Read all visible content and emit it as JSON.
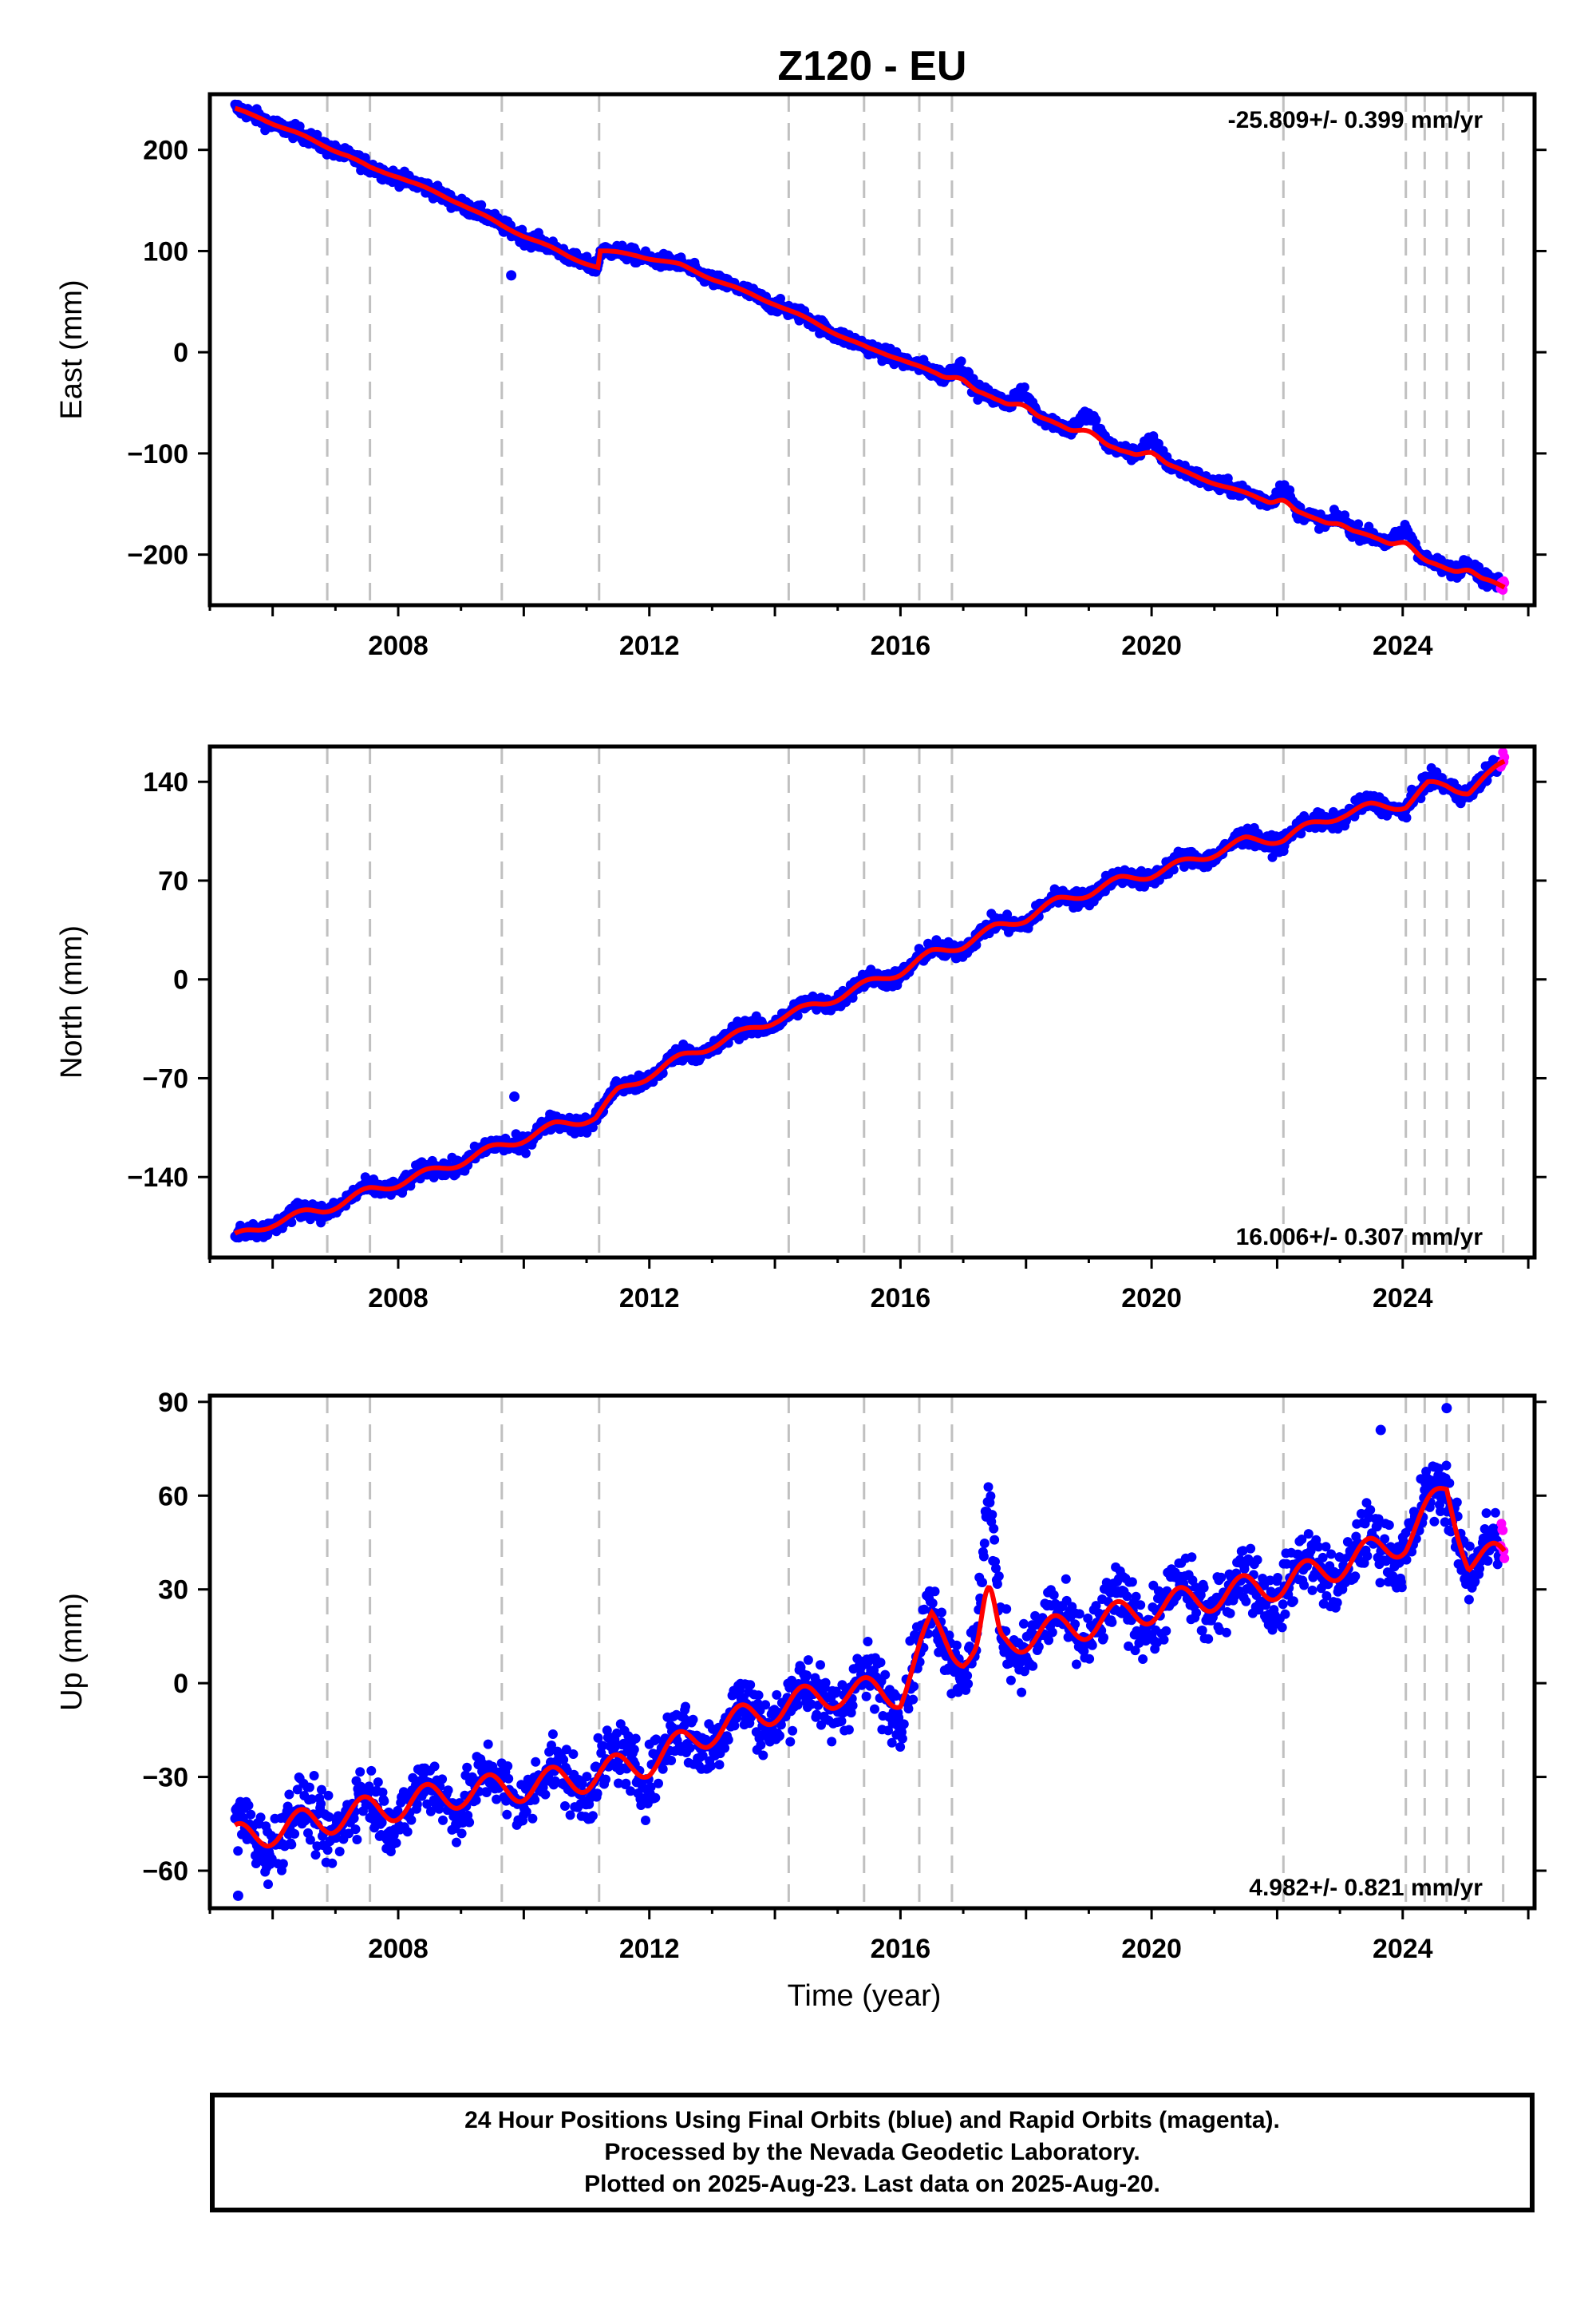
{
  "chart_data": {
    "title": "Z120 - EU",
    "type": "scatter",
    "x_tick_labels": [
      "2008",
      "2012",
      "2016",
      "2020",
      "2024"
    ],
    "xlabel": "Time (year)",
    "xlim": [
      2005.0,
      2026.1
    ],
    "equipment_change_epochs": [
      2006.87,
      2007.55,
      2009.65,
      2011.2,
      2014.22,
      2015.42,
      2016.3,
      2016.82,
      2022.1,
      2024.05,
      2024.35,
      2024.7,
      2025.05,
      2025.6
    ],
    "colors": {
      "final": "#0000ff",
      "rapid": "#ff00ff",
      "model": "#ff0000",
      "event_lines": "#c0c0c0"
    },
    "panels": [
      {
        "name": "east",
        "ylabel": "East (mm)",
        "ylim": [
          -250,
          255
        ],
        "y_ticks": [
          200,
          100,
          0,
          -100,
          -200
        ],
        "y_tick_labels": [
          "200",
          "100",
          "0",
          "−100",
          "−200"
        ],
        "rate_text": "-25.809+/- 0.399 mm/yr",
        "rate_position": "top-right",
        "trend": [
          [
            2005.4,
            240
          ],
          [
            2005.8,
            232
          ],
          [
            2006.2,
            221
          ],
          [
            2006.8,
            205
          ],
          [
            2007.2,
            194
          ],
          [
            2007.55,
            182
          ],
          [
            2008.0,
            174
          ],
          [
            2008.5,
            160
          ],
          [
            2009.0,
            147
          ],
          [
            2009.65,
            125
          ],
          [
            2010.2,
            110
          ],
          [
            2010.7,
            95
          ],
          [
            2011.18,
            84
          ],
          [
            2011.22,
            100
          ],
          [
            2011.8,
            96
          ],
          [
            2012.5,
            86
          ],
          [
            2013.0,
            73
          ],
          [
            2013.5,
            60
          ],
          [
            2014.0,
            48
          ],
          [
            2014.5,
            33
          ],
          [
            2015.0,
            18
          ],
          [
            2015.5,
            3
          ],
          [
            2016.0,
            -6
          ],
          [
            2016.5,
            -20
          ],
          [
            2016.82,
            -28
          ],
          [
            2017.0,
            -32
          ],
          [
            2017.5,
            -47
          ],
          [
            2018.0,
            -58
          ],
          [
            2018.5,
            -72
          ],
          [
            2019.0,
            -85
          ],
          [
            2019.5,
            -98
          ],
          [
            2020.0,
            -104
          ],
          [
            2020.5,
            -118
          ],
          [
            2021.0,
            -129
          ],
          [
            2021.5,
            -140
          ],
          [
            2022.1,
            -152
          ],
          [
            2022.5,
            -163
          ],
          [
            2023.0,
            -172
          ],
          [
            2023.5,
            -183
          ],
          [
            2024.05,
            -194
          ],
          [
            2024.4,
            -208
          ],
          [
            2024.7,
            -214
          ],
          [
            2025.05,
            -219
          ],
          [
            2025.4,
            -227
          ],
          [
            2025.62,
            -233
          ]
        ],
        "seasonal_amplitude": 1.5,
        "scatter": 3.5,
        "transients": [
          {
            "year": 2016.95,
            "amp": 18,
            "width": 0.3
          },
          {
            "year": 2017.95,
            "amp": 17,
            "width": 0.3
          },
          {
            "year": 2019.0,
            "amp": 23,
            "width": 0.35
          },
          {
            "year": 2020.0,
            "amp": 17,
            "width": 0.3
          },
          {
            "year": 2022.1,
            "amp": 18,
            "width": 0.25
          },
          {
            "year": 2023.0,
            "amp": 9,
            "width": 0.25
          },
          {
            "year": 2024.05,
            "amp": 19,
            "width": 0.3
          },
          {
            "year": 2025.05,
            "amp": 13,
            "width": 0.25
          }
        ],
        "outliers": [
          [
            2009.8,
            76
          ]
        ]
      },
      {
        "name": "north",
        "ylabel": "North (mm)",
        "ylim": [
          -197,
          165
        ],
        "y_ticks": [
          140,
          70,
          0,
          -70,
          -140
        ],
        "y_tick_labels": [
          "140",
          "70",
          "0",
          "−70",
          "−140"
        ],
        "rate_text": "16.006+/- 0.307 mm/yr",
        "rate_position": "bottom-right",
        "trend": [
          [
            2005.4,
            -183
          ],
          [
            2006.0,
            -172
          ],
          [
            2006.8,
            -163
          ],
          [
            2007.55,
            -150
          ],
          [
            2008.5,
            -137
          ],
          [
            2009.65,
            -118
          ],
          [
            2010.5,
            -104
          ],
          [
            2011.15,
            -97
          ],
          [
            2011.5,
            -80
          ],
          [
            2012.0,
            -67
          ],
          [
            2012.5,
            -56
          ],
          [
            2013.0,
            -46
          ],
          [
            2013.5,
            -38
          ],
          [
            2014.0,
            -28
          ],
          [
            2014.5,
            -21
          ],
          [
            2015.0,
            -12
          ],
          [
            2015.5,
            -3
          ],
          [
            2016.0,
            6
          ],
          [
            2016.5,
            18
          ],
          [
            2017.0,
            25
          ],
          [
            2017.5,
            36
          ],
          [
            2018.0,
            44
          ],
          [
            2018.5,
            55
          ],
          [
            2019.0,
            62
          ],
          [
            2019.5,
            70
          ],
          [
            2020.0,
            75
          ],
          [
            2020.5,
            82
          ],
          [
            2021.0,
            90
          ],
          [
            2021.5,
            98
          ],
          [
            2022.1,
            100
          ],
          [
            2022.5,
            108
          ],
          [
            2023.0,
            117
          ],
          [
            2023.5,
            122
          ],
          [
            2024.05,
            124
          ],
          [
            2024.4,
            137
          ],
          [
            2024.7,
            137
          ],
          [
            2025.05,
            134
          ],
          [
            2025.4,
            145
          ],
          [
            2025.62,
            153
          ]
        ],
        "seasonal_amplitude": 4,
        "scatter": 3,
        "transients": [],
        "outliers": [
          [
            2009.85,
            -83
          ]
        ]
      },
      {
        "name": "up",
        "ylabel": "Up (mm)",
        "ylim": [
          -72,
          92
        ],
        "y_ticks": [
          90,
          60,
          30,
          0,
          -30,
          -60
        ],
        "y_tick_labels": [
          "90",
          "60",
          "30",
          "0",
          "−30",
          "−60"
        ],
        "rate_text": "4.982+/- 0.821 mm/yr",
        "rate_position": "bottom-right",
        "trend": [
          [
            2005.4,
            -50
          ],
          [
            2006.0,
            -47
          ],
          [
            2007.0,
            -43
          ],
          [
            2008.0,
            -39
          ],
          [
            2009.0,
            -35
          ],
          [
            2010.0,
            -33
          ],
          [
            2011.0,
            -30
          ],
          [
            2012.0,
            -25
          ],
          [
            2012.5,
            -20
          ],
          [
            2013.0,
            -15
          ],
          [
            2014.0,
            -8
          ],
          [
            2015.0,
            -3
          ],
          [
            2016.0,
            -3
          ],
          [
            2016.5,
            18
          ],
          [
            2016.82,
            12
          ],
          [
            2017.0,
            10
          ],
          [
            2018.0,
            15
          ],
          [
            2019.0,
            19
          ],
          [
            2020.0,
            24
          ],
          [
            2021.0,
            28
          ],
          [
            2022.1,
            32
          ],
          [
            2023.0,
            38
          ],
          [
            2024.05,
            46
          ],
          [
            2024.7,
            62
          ],
          [
            2025.05,
            40
          ],
          [
            2025.62,
            40
          ]
        ],
        "seasonal_amplitude": 6,
        "scatter": 5,
        "transients": [
          {
            "year": 2017.4,
            "amp": 40,
            "width": 0.22
          }
        ],
        "outliers": [
          [
            2023.65,
            81
          ],
          [
            2024.7,
            88
          ],
          [
            2005.45,
            -68
          ]
        ]
      }
    ]
  },
  "footer": {
    "line1": "24 Hour Positions Using Final Orbits (blue) and Rapid Orbits (magenta).",
    "line2": "Processed by the Nevada Geodetic Laboratory.",
    "line3": "Plotted on 2025-Aug-23. Last data on 2025-Aug-20."
  }
}
